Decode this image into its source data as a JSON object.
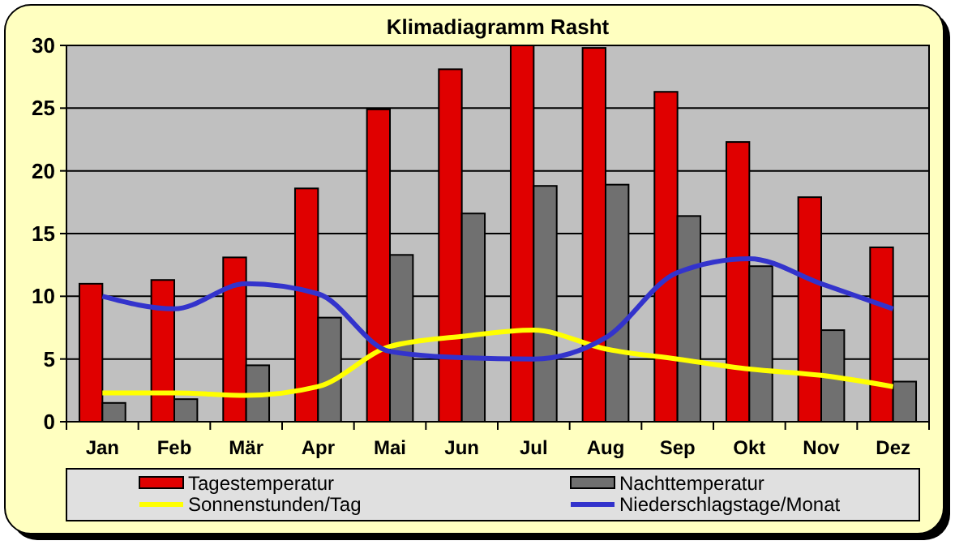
{
  "chart_data": {
    "type": "bar",
    "title": "Klimadiagramm Rasht",
    "categories": [
      "Jan",
      "Feb",
      "Mär",
      "Apr",
      "Mai",
      "Jun",
      "Jul",
      "Aug",
      "Sep",
      "Okt",
      "Nov",
      "Dez"
    ],
    "series": [
      {
        "name": "Tagestemperatur",
        "color": "#e00000",
        "values": [
          11,
          11.3,
          13.1,
          18.6,
          24.9,
          28.1,
          30,
          29.8,
          26.3,
          22.3,
          17.9,
          13.9
        ]
      },
      {
        "name": "Nachttemperatur",
        "color": "#707070",
        "values": [
          1.5,
          1.8,
          4.5,
          8.3,
          13.3,
          16.6,
          18.8,
          18.9,
          16.4,
          12.4,
          7.3,
          3.2
        ]
      },
      {
        "name": "Sonnenstunden/Tag",
        "type": "line",
        "color": "#ffff00",
        "values": [
          2.3,
          2.3,
          2.1,
          2.8,
          6,
          6.8,
          7.3,
          5.8,
          5,
          4.2,
          3.7,
          2.8
        ]
      },
      {
        "name": "Niederschlagstage/Monat",
        "type": "line",
        "color": "#3333cc",
        "values": [
          10,
          9,
          11,
          10.2,
          5.6,
          5.1,
          5,
          6.7,
          11.9,
          13,
          11,
          9
        ]
      }
    ],
    "ylim": [
      0,
      30
    ],
    "yticks": [
      0,
      5,
      10,
      15,
      20,
      25,
      30
    ],
    "grid": "y",
    "legend": "bottom",
    "marker": "none",
    "line_style": "solid"
  }
}
